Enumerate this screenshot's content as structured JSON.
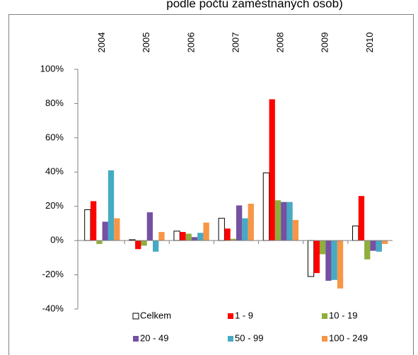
{
  "chart_data": {
    "type": "bar",
    "title": "podle počtu zaměstnaných osob)",
    "categories": [
      "2004",
      "2005",
      "2006",
      "2007",
      "2008",
      "2009",
      "2010"
    ],
    "series": [
      {
        "name": "Celkem",
        "color": "#ffffff",
        "values": [
          18,
          0.5,
          5.5,
          13,
          39.5,
          -21,
          8.5
        ]
      },
      {
        "name": "1 - 9",
        "color": "#ff0000",
        "values": [
          23,
          -5,
          5,
          7,
          82.5,
          -19,
          26
        ]
      },
      {
        "name": "10 - 19",
        "color": "#8fae3c",
        "values": [
          -2,
          -3,
          4,
          1,
          23.5,
          -8,
          -11
        ]
      },
      {
        "name": "20 - 49",
        "color": "#7451a3",
        "values": [
          11,
          16.5,
          2,
          20.5,
          22.5,
          -23.5,
          -6
        ]
      },
      {
        "name": "50 - 99",
        "color": "#46aac4",
        "values": [
          41,
          -6.5,
          4.5,
          13,
          22.5,
          -23,
          -6.5
        ]
      },
      {
        "name": "100 - 249",
        "color": "#f79646",
        "values": [
          13,
          5,
          10.5,
          21.5,
          12,
          -28,
          -2
        ]
      }
    ],
    "ylim": [
      -40,
      100
    ],
    "yticks": [
      {
        "value": -40,
        "label": "-40%"
      },
      {
        "value": -20,
        "label": "-20%"
      },
      {
        "value": 0,
        "label": "0%"
      },
      {
        "value": 20,
        "label": "20%"
      },
      {
        "value": 40,
        "label": "40%"
      },
      {
        "value": 60,
        "label": "60%"
      },
      {
        "value": 80,
        "label": "80%"
      },
      {
        "value": 100,
        "label": "100%"
      }
    ],
    "grid": false
  }
}
